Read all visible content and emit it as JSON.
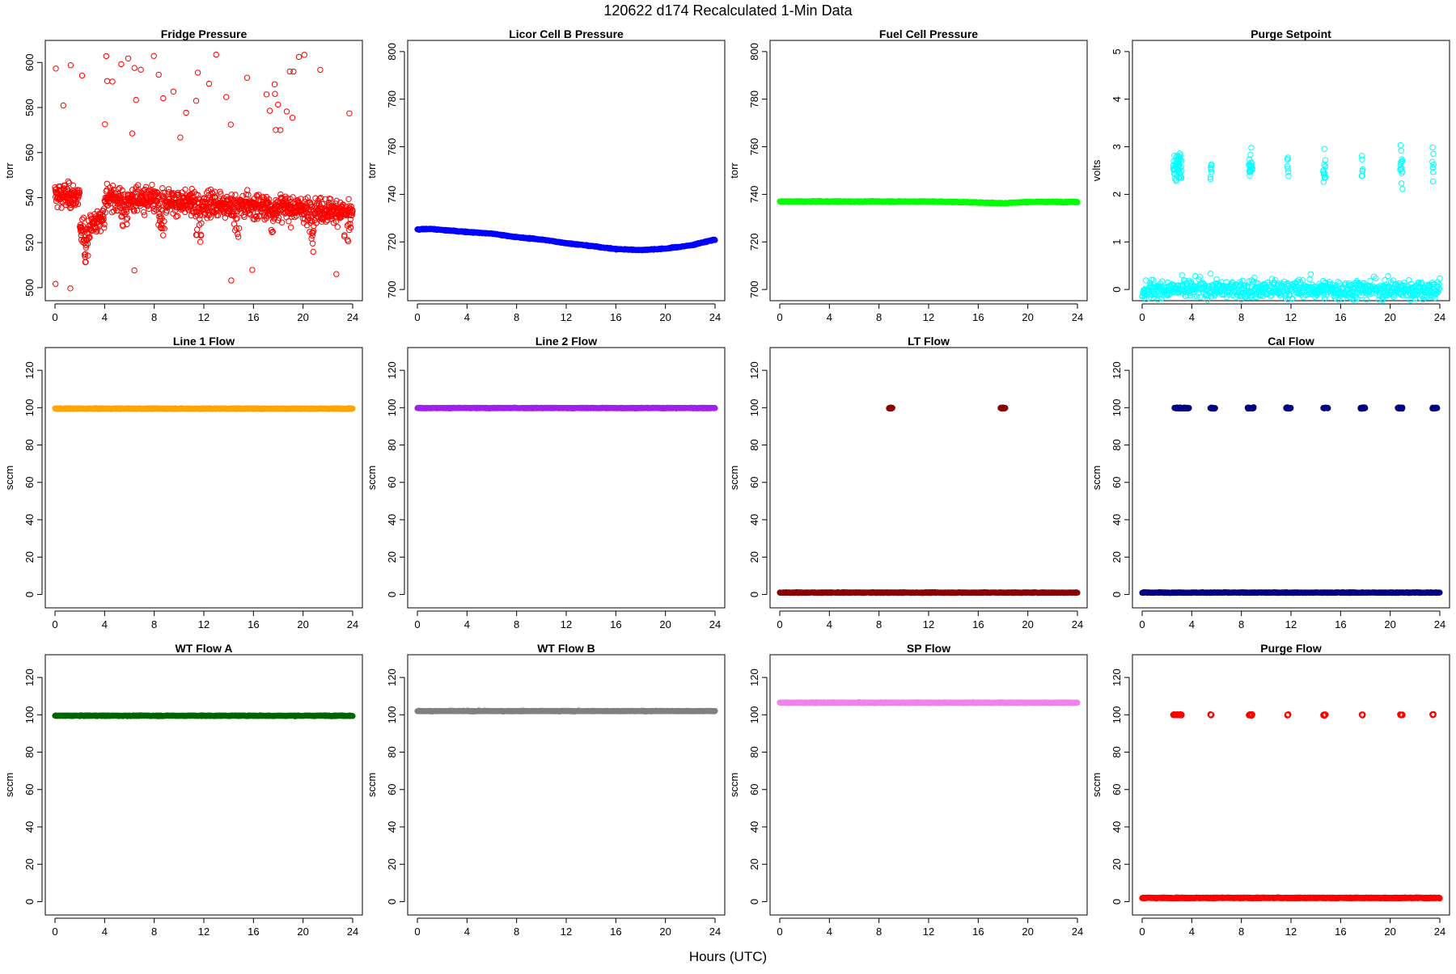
{
  "figure": {
    "title": "120622   d174   Recalculated 1-Min Data",
    "xlabel": "Hours (UTC)"
  },
  "chart_data": [
    {
      "type": "scatter",
      "title": "Fridge Pressure",
      "ylabel": "torr",
      "xlim": [
        0,
        24
      ],
      "ylim": [
        496,
        608
      ],
      "xticks": [
        0,
        4,
        8,
        12,
        16,
        20,
        24
      ],
      "yticks": [
        500,
        520,
        540,
        560,
        580,
        600
      ],
      "color": "#ff0000",
      "marker": "open",
      "series": [
        {
          "name": "Fridge Pressure",
          "pattern": "fridge"
        }
      ]
    },
    {
      "type": "scatter",
      "title": "Licor Cell B Pressure",
      "ylabel": "torr",
      "xlim": [
        0,
        24
      ],
      "ylim": [
        697,
        803
      ],
      "xticks": [
        0,
        4,
        8,
        12,
        16,
        20,
        24
      ],
      "yticks": [
        700,
        720,
        740,
        760,
        780,
        800
      ],
      "color": "#0000ff",
      "marker": "filled",
      "series": [
        {
          "name": "Licor Cell B Pressure",
          "x": [
            0,
            1,
            2,
            4,
            6,
            8,
            10,
            12,
            14,
            16,
            18,
            20,
            22,
            24
          ],
          "y": [
            725.2,
            725.5,
            725,
            724.2,
            723.5,
            722,
            721,
            719.5,
            718.3,
            717,
            716.6,
            717.2,
            718.5,
            721
          ]
        }
      ]
    },
    {
      "type": "scatter",
      "title": "Fuel Cell Pressure",
      "ylabel": "torr",
      "xlim": [
        0,
        24
      ],
      "ylim": [
        697,
        803
      ],
      "xticks": [
        0,
        4,
        8,
        12,
        16,
        20,
        24
      ],
      "yticks": [
        700,
        720,
        740,
        760,
        780,
        800
      ],
      "color": "#00ff00",
      "marker": "filled",
      "series": [
        {
          "name": "Fuel Cell Pressure",
          "x": [
            0,
            6,
            12,
            15,
            18,
            20,
            24
          ],
          "y": [
            737,
            737,
            737,
            736.7,
            736.3,
            736.8,
            736.8
          ]
        }
      ]
    },
    {
      "type": "scatter",
      "title": "Purge Setpoint",
      "ylabel": "volts",
      "xlim": [
        0,
        24
      ],
      "ylim": [
        -0.15,
        5.15
      ],
      "xticks": [
        0,
        4,
        8,
        12,
        16,
        20,
        24
      ],
      "yticks": [
        0,
        1,
        2,
        3,
        4,
        5
      ],
      "color": "#00ffff",
      "marker": "open",
      "series": [
        {
          "name": "baseline",
          "x": [
            0,
            24
          ],
          "y": [
            0,
            0
          ]
        },
        {
          "name": "purge events",
          "y_event": 2.58,
          "events": [
            [
              2.5,
              3.2
            ],
            [
              5.5,
              5.6
            ],
            [
              8.6,
              8.9
            ],
            [
              11.7,
              11.8
            ],
            [
              14.6,
              14.8
            ],
            [
              17.7,
              17.8
            ],
            [
              20.8,
              21.0
            ],
            [
              23.4,
              23.5
            ]
          ]
        }
      ]
    },
    {
      "type": "scatter",
      "title": "Line 1 Flow",
      "ylabel": "sccm",
      "xlim": [
        0,
        24
      ],
      "ylim": [
        -5,
        130
      ],
      "xticks": [
        0,
        4,
        8,
        12,
        16,
        20,
        24
      ],
      "yticks": [
        0,
        20,
        40,
        60,
        80,
        100,
        120
      ],
      "color": "#ffa500",
      "marker": "filled",
      "series": [
        {
          "name": "Line 1 Flow",
          "x": [
            0,
            24
          ],
          "y": [
            99.5,
            99.5
          ]
        }
      ]
    },
    {
      "type": "scatter",
      "title": "Line 2 Flow",
      "ylabel": "sccm",
      "xlim": [
        0,
        24
      ],
      "ylim": [
        -5,
        130
      ],
      "xticks": [
        0,
        4,
        8,
        12,
        16,
        20,
        24
      ],
      "yticks": [
        0,
        20,
        40,
        60,
        80,
        100,
        120
      ],
      "color": "#a020f0",
      "marker": "filled",
      "series": [
        {
          "name": "Line 2 Flow",
          "x": [
            0,
            24
          ],
          "y": [
            99.8,
            99.8
          ]
        }
      ]
    },
    {
      "type": "scatter",
      "title": "LT Flow",
      "ylabel": "sccm",
      "xlim": [
        0,
        24
      ],
      "ylim": [
        -5,
        130
      ],
      "xticks": [
        0,
        4,
        8,
        12,
        16,
        20,
        24
      ],
      "yticks": [
        0,
        20,
        40,
        60,
        80,
        100,
        120
      ],
      "color": "#8b0000",
      "marker": "filled",
      "series": [
        {
          "name": "baseline",
          "x": [
            0,
            24
          ],
          "y": [
            1,
            1
          ]
        },
        {
          "name": "events",
          "y_event": 99.8,
          "events": [
            [
              8.8,
              9.1
            ],
            [
              17.8,
              18.2
            ]
          ]
        }
      ]
    },
    {
      "type": "scatter",
      "title": "Cal Flow",
      "ylabel": "sccm",
      "xlim": [
        0,
        24
      ],
      "ylim": [
        -5,
        130
      ],
      "xticks": [
        0,
        4,
        8,
        12,
        16,
        20,
        24
      ],
      "yticks": [
        0,
        20,
        40,
        60,
        80,
        100,
        120
      ],
      "color": "#000080",
      "marker": "filled",
      "series": [
        {
          "name": "baseline",
          "x": [
            0,
            24
          ],
          "y": [
            1,
            1
          ]
        },
        {
          "name": "cal events",
          "y_event": 99.8,
          "events": [
            [
              2.6,
              3.8
            ],
            [
              5.5,
              5.9
            ],
            [
              8.5,
              9.0
            ],
            [
              11.6,
              12.0
            ],
            [
              14.6,
              15.0
            ],
            [
              17.6,
              18.0
            ],
            [
              20.6,
              21.0
            ],
            [
              23.4,
              23.8
            ]
          ]
        }
      ]
    },
    {
      "type": "scatter",
      "title": "WT Flow A",
      "ylabel": "sccm",
      "xlim": [
        0,
        24
      ],
      "ylim": [
        -5,
        130
      ],
      "xticks": [
        0,
        4,
        8,
        12,
        16,
        20,
        24
      ],
      "yticks": [
        0,
        20,
        40,
        60,
        80,
        100,
        120
      ],
      "color": "#006400",
      "marker": "filled",
      "series": [
        {
          "name": "WT Flow A",
          "x": [
            0,
            24
          ],
          "y": [
            99.5,
            99.5
          ]
        }
      ]
    },
    {
      "type": "scatter",
      "title": "WT Flow B",
      "ylabel": "sccm",
      "xlim": [
        0,
        24
      ],
      "ylim": [
        -5,
        130
      ],
      "xticks": [
        0,
        4,
        8,
        12,
        16,
        20,
        24
      ],
      "yticks": [
        0,
        20,
        40,
        60,
        80,
        100,
        120
      ],
      "color": "#808080",
      "marker": "filled",
      "series": [
        {
          "name": "WT Flow B",
          "x": [
            0,
            24
          ],
          "y": [
            102,
            102
          ]
        }
      ]
    },
    {
      "type": "scatter",
      "title": "SP Flow",
      "ylabel": "sccm",
      "xlim": [
        0,
        24
      ],
      "ylim": [
        -5,
        130
      ],
      "xticks": [
        0,
        4,
        8,
        12,
        16,
        20,
        24
      ],
      "yticks": [
        0,
        20,
        40,
        60,
        80,
        100,
        120
      ],
      "color": "#ee82ee",
      "marker": "filled",
      "series": [
        {
          "name": "SP Flow",
          "x": [
            0,
            24
          ],
          "y": [
            106.5,
            106.5
          ]
        }
      ]
    },
    {
      "type": "scatter",
      "title": "Purge Flow",
      "ylabel": "sccm",
      "xlim": [
        0,
        24
      ],
      "ylim": [
        -5,
        130
      ],
      "xticks": [
        0,
        4,
        8,
        12,
        16,
        20,
        24
      ],
      "yticks": [
        0,
        20,
        40,
        60,
        80,
        100,
        120
      ],
      "color": "#ff0000",
      "marker": "open",
      "series": [
        {
          "name": "baseline",
          "x": [
            0,
            24
          ],
          "y": [
            2,
            2
          ]
        },
        {
          "name": "purge events",
          "y_event": 100,
          "events": [
            [
              2.5,
              3.2
            ],
            [
              5.5,
              5.6
            ],
            [
              8.6,
              8.9
            ],
            [
              11.7,
              11.8
            ],
            [
              14.6,
              14.8
            ],
            [
              17.7,
              17.8
            ],
            [
              20.8,
              21.0
            ],
            [
              23.4,
              23.5
            ]
          ]
        }
      ]
    }
  ]
}
